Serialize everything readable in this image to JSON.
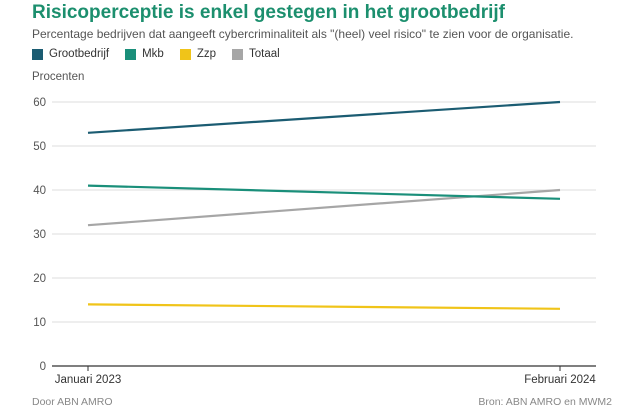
{
  "chart_data": {
    "type": "line",
    "title": "Risicoperceptie is enkel gestegen in het grootbedrijf",
    "subtitle": "Percentage bedrijven dat aangeeft cybercriminaliteit als \"(heel) veel risico\" te zien voor de organisatie.",
    "ylabel": "Procenten",
    "categories": [
      "Januari 2023",
      "Februari 2024"
    ],
    "ylim": [
      0,
      60
    ],
    "yticks": [
      0,
      10,
      20,
      30,
      40,
      50,
      60
    ],
    "grid": true,
    "legend_position": "top-left",
    "series": [
      {
        "name": "Grootbedrijf",
        "values": [
          53,
          60
        ],
        "color": "#1b5c72"
      },
      {
        "name": "Mkb",
        "values": [
          41,
          38
        ],
        "color": "#1a8f7a"
      },
      {
        "name": "Zzp",
        "values": [
          14,
          13
        ],
        "color": "#f0c419"
      },
      {
        "name": "Totaal",
        "values": [
          32,
          40
        ],
        "color": "#a6a6a6"
      }
    ]
  },
  "footer": {
    "left": "Door ABN AMRO",
    "right": "Bron: ABN AMRO en MWM2"
  }
}
